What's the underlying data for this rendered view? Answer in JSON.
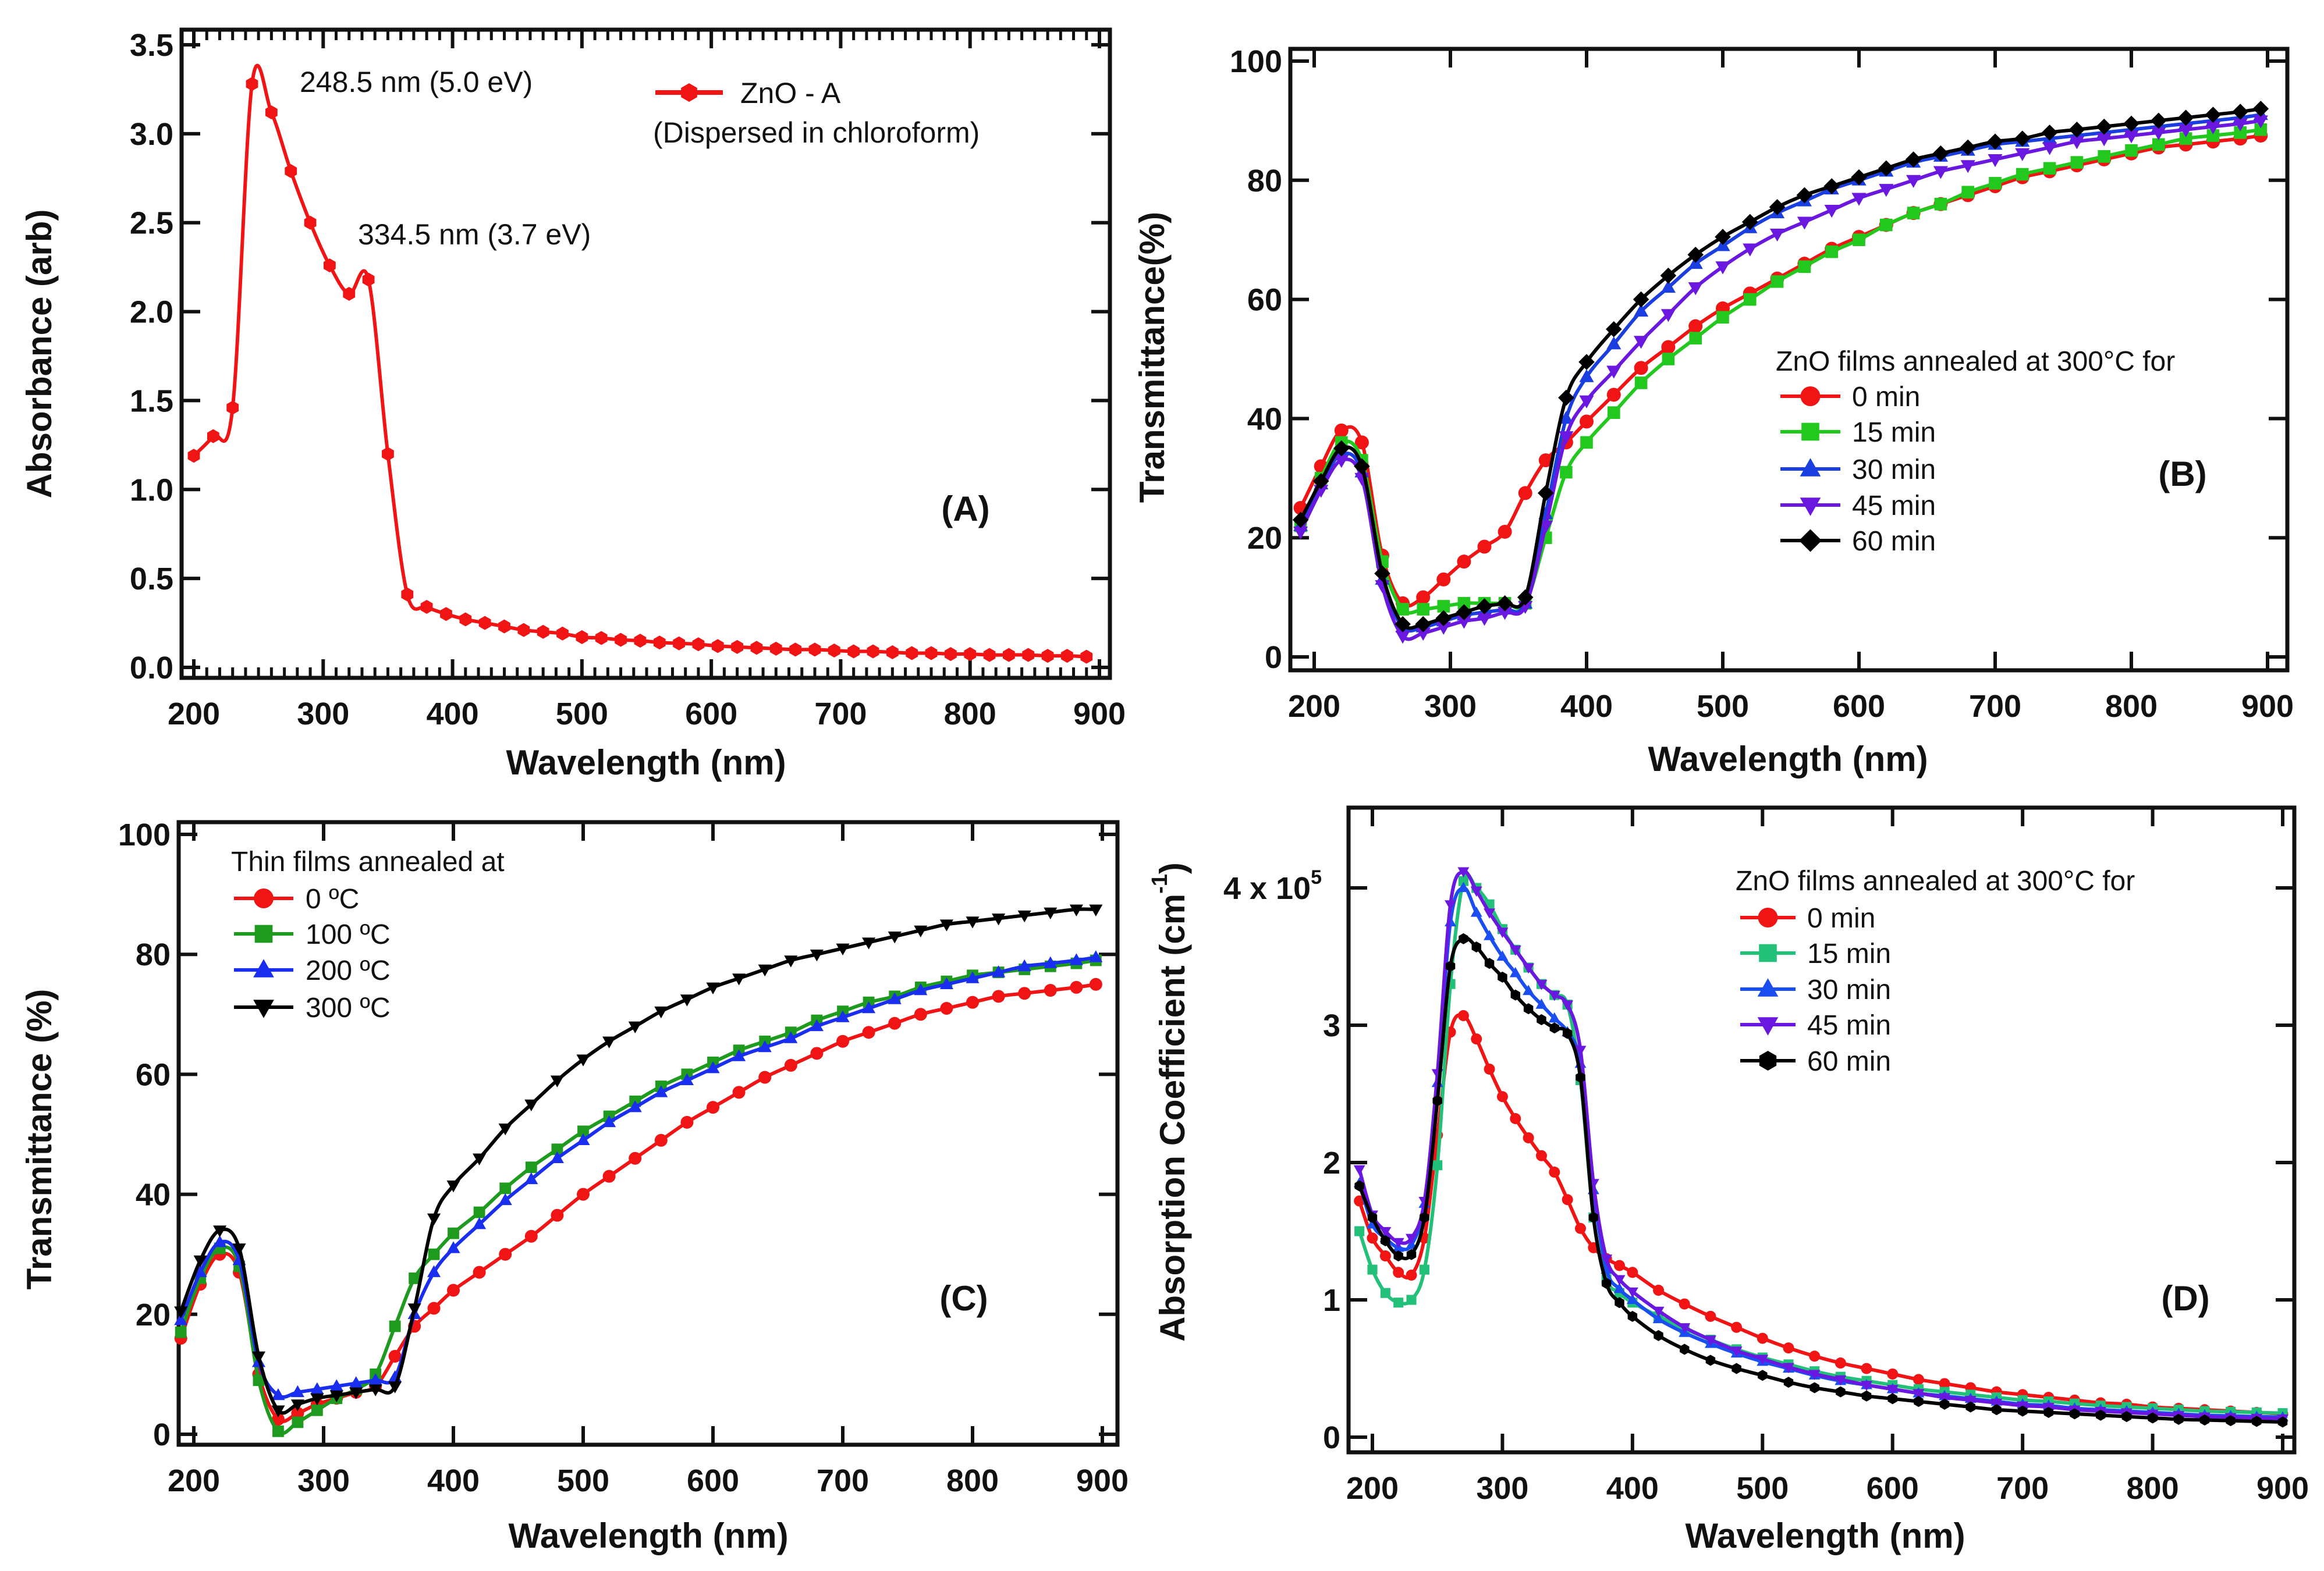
{
  "chart_data": [
    {
      "panel": "(A)",
      "type": "line",
      "xlabel": "Wavelength (nm)",
      "ylabel": "Absorbance (arb)",
      "xlim": [
        200,
        900
      ],
      "ylim": [
        0,
        3.5
      ],
      "xticks": [
        200,
        300,
        400,
        500,
        600,
        700,
        800,
        900
      ],
      "xtick_labels": [
        "200",
        "300",
        "400",
        "500",
        "600",
        "700",
        "800",
        "900"
      ],
      "yticks": [
        0,
        0.5,
        1,
        1.5,
        2,
        2.5,
        3,
        3.5
      ],
      "ytick_labels": [
        "0.0",
        "0.5",
        "1.0",
        "1.5",
        "2.0",
        "2.5",
        "3.0",
        "3.5"
      ],
      "grid": false,
      "legend_placement": "top-right",
      "annotations": [
        "248.5 nm (5.0 eV)",
        "334.5 nm (3.7 eV)"
      ],
      "legend_note": "(Dispersed in chloroform)",
      "series": [
        {
          "name": "ZnO - A",
          "color": "#f01414",
          "marker": "hexagon",
          "x": [
            200,
            215,
            230,
            245,
            260,
            275,
            290,
            305,
            320,
            335,
            350,
            365,
            380,
            395,
            410,
            425,
            440,
            455,
            470,
            485,
            500,
            515,
            530,
            545,
            560,
            575,
            590,
            605,
            620,
            635,
            650,
            665,
            680,
            695,
            710,
            725,
            740,
            755,
            770,
            785,
            800,
            815,
            830,
            845,
            860,
            875,
            890
          ],
          "y": [
            1.19,
            1.3,
            1.46,
            3.28,
            3.12,
            2.79,
            2.5,
            2.26,
            2.1,
            2.18,
            1.2,
            0.41,
            0.34,
            0.3,
            0.27,
            0.25,
            0.23,
            0.21,
            0.2,
            0.19,
            0.17,
            0.165,
            0.155,
            0.15,
            0.14,
            0.135,
            0.13,
            0.12,
            0.115,
            0.11,
            0.105,
            0.1,
            0.1,
            0.095,
            0.09,
            0.09,
            0.085,
            0.08,
            0.08,
            0.075,
            0.075,
            0.07,
            0.07,
            0.07,
            0.065,
            0.065,
            0.06
          ]
        }
      ]
    },
    {
      "panel": "(B)",
      "type": "line",
      "xlabel": "Wavelength (nm)",
      "ylabel": "Transmittance(%)",
      "xlim": [
        190,
        905
      ],
      "ylim": [
        0,
        100
      ],
      "xticks": [
        200,
        300,
        400,
        500,
        600,
        700,
        800,
        900
      ],
      "xtick_labels": [
        "200",
        "300",
        "400",
        "500",
        "600",
        "700",
        "800",
        "900"
      ],
      "yticks": [
        0,
        20,
        40,
        60,
        80,
        100
      ],
      "ytick_labels": [
        "0",
        "20",
        "40",
        "60",
        "80",
        "100"
      ],
      "grid": false,
      "legend_title": "ZnO films annealed at 300°C for",
      "legend_placement": "center-right",
      "x": [
        190,
        205,
        220,
        235,
        250,
        265,
        280,
        295,
        310,
        325,
        340,
        355,
        370,
        385,
        400,
        420,
        440,
        460,
        480,
        500,
        520,
        540,
        560,
        580,
        600,
        620,
        640,
        660,
        680,
        700,
        720,
        740,
        760,
        780,
        800,
        820,
        840,
        860,
        880,
        895
      ],
      "series": [
        {
          "name": "0 min",
          "color": "#f01414",
          "marker": "circle",
          "y": [
            25,
            32,
            38,
            36,
            17,
            9,
            10,
            13,
            16,
            18.5,
            21,
            27.5,
            33,
            36,
            39.5,
            44,
            48.5,
            52,
            55.5,
            58.5,
            61,
            63.5,
            66,
            68.5,
            70.5,
            72.5,
            74.5,
            76,
            77.5,
            79,
            80.5,
            81.5,
            82.5,
            83.5,
            84.5,
            85.5,
            86,
            86.5,
            87,
            87.5
          ]
        },
        {
          "name": "15 min",
          "color": "#22c81e",
          "marker": "square",
          "y": [
            22,
            30,
            36,
            33,
            16,
            8,
            8,
            8.5,
            9,
            9,
            9,
            9,
            20,
            31,
            36,
            41,
            46,
            50,
            53.5,
            57,
            60,
            63,
            65.5,
            68,
            70,
            72.5,
            74.5,
            76,
            78,
            79.5,
            81,
            82,
            83,
            84,
            85,
            86,
            87,
            87.5,
            88,
            88.5
          ]
        },
        {
          "name": "30 min",
          "color": "#1a3ee0",
          "marker": "triangle-up",
          "y": [
            22,
            29,
            34,
            31,
            13,
            5,
            5,
            6,
            7,
            7.5,
            8,
            9,
            24,
            40,
            47,
            52.5,
            58,
            62,
            66,
            69,
            72,
            74.5,
            76.5,
            78.5,
            80,
            81.5,
            83,
            84,
            85,
            86,
            86.5,
            87,
            87.5,
            88,
            88.5,
            89,
            89.5,
            90,
            90.5,
            91
          ]
        },
        {
          "name": "45 min",
          "color": "#6a18e0",
          "marker": "triangle-down",
          "y": [
            21,
            28,
            33,
            30,
            12,
            3.5,
            4,
            5,
            6,
            6.5,
            7.5,
            8.5,
            22,
            37,
            43,
            48,
            53,
            57.5,
            62,
            65.5,
            68.5,
            71,
            73,
            75,
            77,
            78.5,
            80,
            81.5,
            82.5,
            83.5,
            84.5,
            85.5,
            86.5,
            87,
            87.5,
            88,
            88.5,
            89,
            89.5,
            90
          ]
        },
        {
          "name": "60 min",
          "color": "#000000",
          "marker": "diamond",
          "y": [
            23,
            29.5,
            35,
            32,
            14,
            5.5,
            5.5,
            6.5,
            7.5,
            8.5,
            9,
            10,
            27.5,
            43.5,
            49.5,
            55,
            60,
            64,
            67.5,
            70.5,
            73,
            75.5,
            77.5,
            79,
            80.5,
            82,
            83.5,
            84.5,
            85.5,
            86.5,
            87,
            88,
            88.5,
            89,
            89.5,
            90,
            90.5,
            91,
            91.5,
            92
          ]
        }
      ]
    },
    {
      "panel": "(C)",
      "type": "line",
      "xlabel": "Wavelength (nm)",
      "ylabel": "Transmittance (%)",
      "xlim": [
        190,
        905
      ],
      "ylim": [
        0,
        100
      ],
      "xticks": [
        200,
        300,
        400,
        500,
        600,
        700,
        800,
        900
      ],
      "xtick_labels": [
        "200",
        "300",
        "400",
        "500",
        "600",
        "700",
        "800",
        "900"
      ],
      "yticks": [
        0,
        20,
        40,
        60,
        80,
        100
      ],
      "ytick_labels": [
        "0",
        "20",
        "40",
        "60",
        "80",
        "100"
      ],
      "grid": false,
      "legend_title": "Thin films annealed at",
      "legend_placement": "top-left",
      "x": [
        190,
        205,
        220,
        235,
        250,
        265,
        280,
        295,
        310,
        325,
        340,
        355,
        370,
        385,
        400,
        420,
        440,
        460,
        480,
        500,
        520,
        540,
        560,
        580,
        600,
        620,
        640,
        660,
        680,
        700,
        720,
        740,
        760,
        780,
        800,
        820,
        840,
        860,
        880,
        895
      ],
      "series": [
        {
          "name": "0 ºC",
          "color": "#f01414",
          "marker": "circle",
          "y": [
            16,
            25,
            30,
            27,
            10,
            2.5,
            3.5,
            5,
            6,
            7,
            8,
            13,
            18,
            21,
            24,
            27,
            30,
            33,
            36.5,
            40,
            43,
            46,
            49,
            52,
            54.5,
            57,
            59.5,
            61.5,
            63.5,
            65.5,
            67,
            68.5,
            70,
            71,
            72,
            73,
            73.5,
            74,
            74.5,
            75
          ]
        },
        {
          "name": "100 ºC",
          "color": "#1e9a1e",
          "marker": "square",
          "y": [
            17,
            26,
            31,
            28,
            9,
            0.5,
            2,
            4,
            6,
            7.5,
            10,
            18,
            26,
            30,
            33.5,
            37,
            41,
            44.5,
            47.5,
            50.5,
            53,
            55.5,
            58,
            60,
            62,
            64,
            65.5,
            67,
            69,
            70.5,
            72,
            73,
            74.5,
            75.5,
            76.5,
            77,
            77.5,
            78,
            78.5,
            79
          ]
        },
        {
          "name": "200 ºC",
          "color": "#1a2ef0",
          "marker": "triangle-up",
          "y": [
            19,
            27,
            32,
            29,
            12,
            6.5,
            7,
            7.5,
            8,
            8.5,
            9,
            9.5,
            20,
            27,
            31,
            35,
            39,
            42.5,
            46,
            49,
            52,
            54.5,
            57,
            59,
            61,
            63,
            64.5,
            66,
            68,
            69.5,
            71,
            72.5,
            74,
            75,
            76,
            77,
            78,
            78.5,
            79,
            79.5
          ]
        },
        {
          "name": "300 ºC",
          "color": "#000000",
          "marker": "triangle-down",
          "y": [
            20.5,
            29,
            34,
            31,
            13,
            4,
            5,
            6,
            6.5,
            7,
            7.5,
            8,
            21,
            36,
            41.5,
            46,
            51,
            55,
            59,
            62.5,
            65.5,
            68,
            70.5,
            72.5,
            74.5,
            76,
            77.5,
            79,
            80,
            81,
            82,
            83,
            84,
            85,
            85.5,
            86,
            86.5,
            87,
            87.5,
            87.5
          ]
        }
      ]
    },
    {
      "panel": "(D)",
      "type": "line",
      "xlabel": "Wavelength (nm)",
      "ylabel": "Absorption Coefficient (cm",
      "ylabel_exponent": "-1",
      "ylabel_close": ")",
      "xlim": [
        190,
        905
      ],
      "ylim": [
        0,
        4.6
      ],
      "y_scale_factor": "x 10^5",
      "xticks": [
        200,
        300,
        400,
        500,
        600,
        700,
        800,
        900
      ],
      "xtick_labels": [
        "200",
        "300",
        "400",
        "500",
        "600",
        "700",
        "800",
        "900"
      ],
      "yticks": [
        0,
        1,
        2,
        3,
        4
      ],
      "ytick_labels": [
        "0",
        "1",
        "2",
        "3",
        "4 x 10"
      ],
      "ytick_exponent": "5",
      "grid": false,
      "legend_title": "ZnO films annealed at 300°C for",
      "legend_placement": "top-right",
      "x": [
        190,
        200,
        210,
        220,
        230,
        240,
        250,
        260,
        270,
        280,
        290,
        300,
        310,
        320,
        330,
        340,
        350,
        360,
        370,
        380,
        390,
        400,
        420,
        440,
        460,
        480,
        500,
        520,
        540,
        560,
        580,
        600,
        620,
        640,
        660,
        680,
        700,
        720,
        740,
        760,
        780,
        800,
        820,
        840,
        860,
        880,
        900
      ],
      "series": [
        {
          "name": "0 min",
          "color": "#f01414",
          "marker": "circle",
          "y": [
            1.72,
            1.45,
            1.32,
            1.2,
            1.18,
            1.45,
            2.2,
            2.95,
            3.07,
            2.9,
            2.68,
            2.48,
            2.32,
            2.18,
            2.05,
            1.93,
            1.73,
            1.52,
            1.38,
            1.3,
            1.25,
            1.2,
            1.07,
            0.97,
            0.88,
            0.8,
            0.72,
            0.65,
            0.59,
            0.54,
            0.5,
            0.46,
            0.42,
            0.39,
            0.36,
            0.33,
            0.31,
            0.29,
            0.27,
            0.25,
            0.24,
            0.22,
            0.21,
            0.2,
            0.19,
            0.18,
            0.17
          ]
        },
        {
          "name": "15 min",
          "color": "#22c078",
          "marker": "square",
          "y": [
            1.5,
            1.22,
            1.05,
            0.98,
            1.0,
            1.22,
            1.98,
            3.3,
            4.05,
            4.0,
            3.88,
            3.7,
            3.55,
            3.42,
            3.3,
            3.22,
            3.15,
            2.6,
            1.6,
            1.15,
            1.05,
            0.98,
            0.88,
            0.79,
            0.71,
            0.64,
            0.58,
            0.53,
            0.48,
            0.44,
            0.41,
            0.38,
            0.35,
            0.33,
            0.31,
            0.29,
            0.27,
            0.26,
            0.245,
            0.23,
            0.22,
            0.21,
            0.2,
            0.19,
            0.185,
            0.18,
            0.175
          ]
        },
        {
          "name": "30 min",
          "color": "#1a4ef0",
          "marker": "triangle-up",
          "y": [
            1.85,
            1.55,
            1.45,
            1.38,
            1.4,
            1.7,
            2.58,
            3.75,
            4.0,
            3.82,
            3.65,
            3.5,
            3.38,
            3.25,
            3.15,
            3.05,
            2.95,
            2.72,
            1.8,
            1.22,
            1.08,
            1.0,
            0.86,
            0.76,
            0.68,
            0.61,
            0.55,
            0.5,
            0.45,
            0.41,
            0.38,
            0.35,
            0.32,
            0.3,
            0.28,
            0.26,
            0.24,
            0.23,
            0.21,
            0.2,
            0.19,
            0.18,
            0.17,
            0.16,
            0.155,
            0.15,
            0.145
          ]
        },
        {
          "name": "45 min",
          "color": "#6a18e0",
          "marker": "triangle-down",
          "y": [
            1.95,
            1.62,
            1.5,
            1.42,
            1.45,
            1.72,
            2.65,
            3.88,
            4.12,
            3.98,
            3.82,
            3.68,
            3.55,
            3.42,
            3.3,
            3.22,
            3.15,
            2.82,
            1.85,
            1.3,
            1.15,
            1.06,
            0.92,
            0.8,
            0.71,
            0.63,
            0.57,
            0.51,
            0.46,
            0.42,
            0.38,
            0.35,
            0.32,
            0.29,
            0.27,
            0.25,
            0.23,
            0.22,
            0.2,
            0.19,
            0.18,
            0.17,
            0.16,
            0.15,
            0.145,
            0.14,
            0.135
          ]
        },
        {
          "name": "60 min",
          "color": "#000000",
          "marker": "hexagon",
          "y": [
            1.83,
            1.6,
            1.43,
            1.32,
            1.33,
            1.6,
            2.45,
            3.43,
            3.63,
            3.57,
            3.45,
            3.35,
            3.22,
            3.12,
            3.04,
            2.98,
            2.94,
            2.62,
            1.6,
            1.12,
            0.98,
            0.88,
            0.74,
            0.64,
            0.56,
            0.5,
            0.45,
            0.4,
            0.36,
            0.33,
            0.3,
            0.28,
            0.26,
            0.24,
            0.22,
            0.2,
            0.19,
            0.18,
            0.17,
            0.16,
            0.15,
            0.14,
            0.13,
            0.125,
            0.12,
            0.115,
            0.11
          ]
        }
      ]
    }
  ]
}
